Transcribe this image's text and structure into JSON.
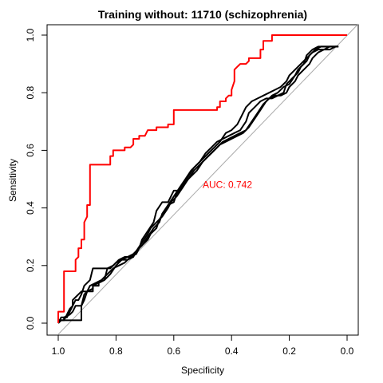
{
  "chart_data": {
    "type": "line",
    "title": "Training without: 11710 (schizophrenia)",
    "xlabel": "Specificity",
    "ylabel": "Sensitivity",
    "xlim": [
      1.0,
      0.0
    ],
    "ylim": [
      0.0,
      1.0
    ],
    "x_reversed": true,
    "xticks": [
      1.0,
      0.8,
      0.6,
      0.4,
      0.2,
      0.0
    ],
    "xtick_labels": [
      "1.0",
      "0.8",
      "0.6",
      "0.4",
      "0.2",
      "0.0"
    ],
    "yticks": [
      0.0,
      0.2,
      0.4,
      0.6,
      0.8,
      1.0
    ],
    "ytick_labels": [
      "0.0",
      "0.2",
      "0.4",
      "0.6",
      "0.8",
      "1.0"
    ],
    "grid": false,
    "reference_line": {
      "from": [
        1.0,
        0.0
      ],
      "to": [
        0.0,
        1.0
      ],
      "color": "#aaaaaa"
    },
    "annotations": [
      {
        "text": "AUC: 0.742",
        "x": 0.5,
        "y": 0.48,
        "color": "#ff0000"
      }
    ],
    "series": [
      {
        "color": "#ff0000",
        "points": [
          [
            1.0,
            0.0
          ],
          [
            1.0,
            0.04
          ],
          [
            0.98,
            0.04
          ],
          [
            0.98,
            0.18
          ],
          [
            0.94,
            0.18
          ],
          [
            0.94,
            0.22
          ],
          [
            0.93,
            0.23
          ],
          [
            0.93,
            0.26
          ],
          [
            0.92,
            0.26
          ],
          [
            0.92,
            0.29
          ],
          [
            0.91,
            0.29
          ],
          [
            0.91,
            0.35
          ],
          [
            0.9,
            0.37
          ],
          [
            0.9,
            0.41
          ],
          [
            0.89,
            0.41
          ],
          [
            0.89,
            0.55
          ],
          [
            0.82,
            0.55
          ],
          [
            0.82,
            0.58
          ],
          [
            0.81,
            0.58
          ],
          [
            0.81,
            0.6
          ],
          [
            0.77,
            0.6
          ],
          [
            0.77,
            0.61
          ],
          [
            0.75,
            0.61
          ],
          [
            0.74,
            0.62
          ],
          [
            0.74,
            0.64
          ],
          [
            0.72,
            0.64
          ],
          [
            0.72,
            0.65
          ],
          [
            0.7,
            0.65
          ],
          [
            0.69,
            0.67
          ],
          [
            0.66,
            0.67
          ],
          [
            0.66,
            0.68
          ],
          [
            0.62,
            0.68
          ],
          [
            0.62,
            0.69
          ],
          [
            0.6,
            0.69
          ],
          [
            0.6,
            0.74
          ],
          [
            0.45,
            0.74
          ],
          [
            0.45,
            0.75
          ],
          [
            0.44,
            0.75
          ],
          [
            0.44,
            0.77
          ],
          [
            0.42,
            0.77
          ],
          [
            0.42,
            0.78
          ],
          [
            0.41,
            0.79
          ],
          [
            0.4,
            0.79
          ],
          [
            0.4,
            0.81
          ],
          [
            0.39,
            0.84
          ],
          [
            0.39,
            0.88
          ],
          [
            0.38,
            0.89
          ],
          [
            0.37,
            0.9
          ],
          [
            0.35,
            0.9
          ],
          [
            0.34,
            0.91
          ],
          [
            0.34,
            0.92
          ],
          [
            0.3,
            0.92
          ],
          [
            0.3,
            0.95
          ],
          [
            0.29,
            0.95
          ],
          [
            0.29,
            0.98
          ],
          [
            0.26,
            0.98
          ],
          [
            0.26,
            1.0
          ],
          [
            0.0,
            1.0
          ]
        ]
      },
      {
        "color": "#000000",
        "points": [
          [
            1.0,
            0.0
          ],
          [
            1.0,
            0.01
          ],
          [
            0.98,
            0.01
          ],
          [
            0.98,
            0.02
          ],
          [
            0.96,
            0.03
          ],
          [
            0.95,
            0.04
          ],
          [
            0.94,
            0.06
          ],
          [
            0.92,
            0.06
          ],
          [
            0.91,
            0.1
          ],
          [
            0.9,
            0.11
          ],
          [
            0.88,
            0.12
          ],
          [
            0.88,
            0.13
          ],
          [
            0.86,
            0.14
          ],
          [
            0.84,
            0.15
          ],
          [
            0.82,
            0.17
          ],
          [
            0.8,
            0.2
          ],
          [
            0.78,
            0.22
          ],
          [
            0.76,
            0.22
          ],
          [
            0.74,
            0.23
          ],
          [
            0.73,
            0.25
          ],
          [
            0.71,
            0.27
          ],
          [
            0.69,
            0.3
          ],
          [
            0.67,
            0.33
          ],
          [
            0.65,
            0.35
          ],
          [
            0.64,
            0.38
          ],
          [
            0.62,
            0.41
          ],
          [
            0.6,
            0.44
          ],
          [
            0.58,
            0.47
          ],
          [
            0.56,
            0.5
          ],
          [
            0.54,
            0.53
          ],
          [
            0.52,
            0.55
          ],
          [
            0.5,
            0.57
          ],
          [
            0.48,
            0.59
          ],
          [
            0.46,
            0.61
          ],
          [
            0.44,
            0.63
          ],
          [
            0.42,
            0.66
          ],
          [
            0.4,
            0.67
          ],
          [
            0.38,
            0.69
          ],
          [
            0.37,
            0.71
          ],
          [
            0.36,
            0.73
          ],
          [
            0.35,
            0.75
          ],
          [
            0.33,
            0.77
          ],
          [
            0.31,
            0.78
          ],
          [
            0.29,
            0.79
          ],
          [
            0.27,
            0.8
          ],
          [
            0.25,
            0.81
          ],
          [
            0.23,
            0.82
          ],
          [
            0.21,
            0.84
          ],
          [
            0.2,
            0.86
          ],
          [
            0.18,
            0.88
          ],
          [
            0.16,
            0.9
          ],
          [
            0.14,
            0.92
          ],
          [
            0.12,
            0.94
          ],
          [
            0.1,
            0.95
          ],
          [
            0.08,
            0.95
          ],
          [
            0.06,
            0.95
          ],
          [
            0.04,
            0.96
          ],
          [
            0.03,
            0.96
          ]
        ]
      },
      {
        "color": "#000000",
        "points": [
          [
            1.0,
            0.0
          ],
          [
            0.99,
            0.01
          ],
          [
            0.98,
            0.01
          ],
          [
            0.97,
            0.03
          ],
          [
            0.96,
            0.05
          ],
          [
            0.95,
            0.06
          ],
          [
            0.95,
            0.08
          ],
          [
            0.94,
            0.09
          ],
          [
            0.93,
            0.1
          ],
          [
            0.92,
            0.11
          ],
          [
            0.9,
            0.11
          ],
          [
            0.89,
            0.13
          ],
          [
            0.87,
            0.14
          ],
          [
            0.85,
            0.15
          ],
          [
            0.83,
            0.17
          ],
          [
            0.81,
            0.19
          ],
          [
            0.79,
            0.2
          ],
          [
            0.77,
            0.21
          ],
          [
            0.75,
            0.23
          ],
          [
            0.73,
            0.25
          ],
          [
            0.71,
            0.28
          ],
          [
            0.69,
            0.31
          ],
          [
            0.68,
            0.33
          ],
          [
            0.66,
            0.35
          ],
          [
            0.64,
            0.37
          ],
          [
            0.62,
            0.4
          ],
          [
            0.61,
            0.42
          ],
          [
            0.59,
            0.44
          ],
          [
            0.57,
            0.47
          ],
          [
            0.55,
            0.5
          ],
          [
            0.53,
            0.53
          ],
          [
            0.51,
            0.55
          ],
          [
            0.49,
            0.57
          ],
          [
            0.47,
            0.59
          ],
          [
            0.45,
            0.61
          ],
          [
            0.43,
            0.63
          ],
          [
            0.41,
            0.64
          ],
          [
            0.39,
            0.65
          ],
          [
            0.37,
            0.66
          ],
          [
            0.35,
            0.67
          ],
          [
            0.33,
            0.7
          ],
          [
            0.31,
            0.73
          ],
          [
            0.29,
            0.76
          ],
          [
            0.27,
            0.78
          ],
          [
            0.25,
            0.79
          ],
          [
            0.23,
            0.79
          ],
          [
            0.21,
            0.8
          ],
          [
            0.2,
            0.82
          ],
          [
            0.18,
            0.84
          ],
          [
            0.17,
            0.86
          ],
          [
            0.15,
            0.88
          ],
          [
            0.13,
            0.9
          ],
          [
            0.12,
            0.92
          ],
          [
            0.1,
            0.94
          ],
          [
            0.08,
            0.95
          ],
          [
            0.06,
            0.96
          ],
          [
            0.04,
            0.96
          ],
          [
            0.03,
            0.96
          ]
        ]
      },
      {
        "color": "#000000",
        "points": [
          [
            1.0,
            0.0
          ],
          [
            1.0,
            0.01
          ],
          [
            0.92,
            0.01
          ],
          [
            0.92,
            0.06
          ],
          [
            0.91,
            0.08
          ],
          [
            0.9,
            0.11
          ],
          [
            0.88,
            0.11
          ],
          [
            0.88,
            0.13
          ],
          [
            0.86,
            0.13
          ],
          [
            0.86,
            0.14
          ],
          [
            0.84,
            0.15
          ],
          [
            0.83,
            0.19
          ],
          [
            0.81,
            0.2
          ],
          [
            0.79,
            0.22
          ],
          [
            0.77,
            0.23
          ],
          [
            0.75,
            0.23
          ],
          [
            0.73,
            0.24
          ],
          [
            0.72,
            0.26
          ],
          [
            0.7,
            0.28
          ],
          [
            0.69,
            0.29
          ],
          [
            0.68,
            0.31
          ],
          [
            0.66,
            0.33
          ],
          [
            0.65,
            0.36
          ],
          [
            0.63,
            0.39
          ],
          [
            0.62,
            0.41
          ],
          [
            0.6,
            0.42
          ],
          [
            0.59,
            0.45
          ],
          [
            0.57,
            0.47
          ],
          [
            0.56,
            0.49
          ],
          [
            0.54,
            0.51
          ],
          [
            0.52,
            0.53
          ],
          [
            0.5,
            0.56
          ],
          [
            0.48,
            0.58
          ],
          [
            0.46,
            0.6
          ],
          [
            0.44,
            0.62
          ],
          [
            0.42,
            0.63
          ],
          [
            0.4,
            0.64
          ],
          [
            0.38,
            0.65
          ],
          [
            0.36,
            0.66
          ],
          [
            0.34,
            0.68
          ],
          [
            0.32,
            0.71
          ],
          [
            0.3,
            0.74
          ],
          [
            0.28,
            0.77
          ],
          [
            0.26,
            0.79
          ],
          [
            0.24,
            0.8
          ],
          [
            0.22,
            0.82
          ],
          [
            0.2,
            0.83
          ],
          [
            0.18,
            0.86
          ],
          [
            0.17,
            0.88
          ],
          [
            0.15,
            0.9
          ],
          [
            0.14,
            0.93
          ],
          [
            0.12,
            0.95
          ],
          [
            0.1,
            0.96
          ],
          [
            0.08,
            0.96
          ],
          [
            0.05,
            0.96
          ],
          [
            0.03,
            0.96
          ]
        ]
      },
      {
        "color": "#000000",
        "points": [
          [
            1.0,
            0.0
          ],
          [
            0.99,
            0.02
          ],
          [
            0.97,
            0.02
          ],
          [
            0.96,
            0.04
          ],
          [
            0.95,
            0.06
          ],
          [
            0.94,
            0.08
          ],
          [
            0.93,
            0.08
          ],
          [
            0.92,
            0.1
          ],
          [
            0.91,
            0.13
          ],
          [
            0.89,
            0.15
          ],
          [
            0.88,
            0.19
          ],
          [
            0.84,
            0.19
          ],
          [
            0.82,
            0.19
          ],
          [
            0.8,
            0.21
          ],
          [
            0.78,
            0.22
          ],
          [
            0.76,
            0.23
          ],
          [
            0.74,
            0.24
          ],
          [
            0.72,
            0.26
          ],
          [
            0.71,
            0.29
          ],
          [
            0.69,
            0.32
          ],
          [
            0.67,
            0.35
          ],
          [
            0.66,
            0.39
          ],
          [
            0.64,
            0.42
          ],
          [
            0.62,
            0.42
          ],
          [
            0.61,
            0.44
          ],
          [
            0.6,
            0.46
          ],
          [
            0.58,
            0.46
          ],
          [
            0.57,
            0.48
          ],
          [
            0.55,
            0.51
          ],
          [
            0.53,
            0.54
          ],
          [
            0.51,
            0.56
          ],
          [
            0.49,
            0.59
          ],
          [
            0.47,
            0.61
          ],
          [
            0.45,
            0.63
          ],
          [
            0.43,
            0.64
          ],
          [
            0.41,
            0.65
          ],
          [
            0.39,
            0.66
          ],
          [
            0.37,
            0.67
          ],
          [
            0.35,
            0.7
          ],
          [
            0.34,
            0.73
          ],
          [
            0.32,
            0.75
          ],
          [
            0.3,
            0.77
          ],
          [
            0.28,
            0.78
          ],
          [
            0.26,
            0.78
          ],
          [
            0.24,
            0.79
          ],
          [
            0.22,
            0.8
          ],
          [
            0.21,
            0.83
          ],
          [
            0.19,
            0.85
          ],
          [
            0.17,
            0.87
          ],
          [
            0.16,
            0.89
          ],
          [
            0.14,
            0.91
          ],
          [
            0.13,
            0.93
          ],
          [
            0.11,
            0.95
          ],
          [
            0.09,
            0.96
          ],
          [
            0.07,
            0.96
          ],
          [
            0.05,
            0.96
          ],
          [
            0.03,
            0.96
          ]
        ]
      }
    ]
  }
}
